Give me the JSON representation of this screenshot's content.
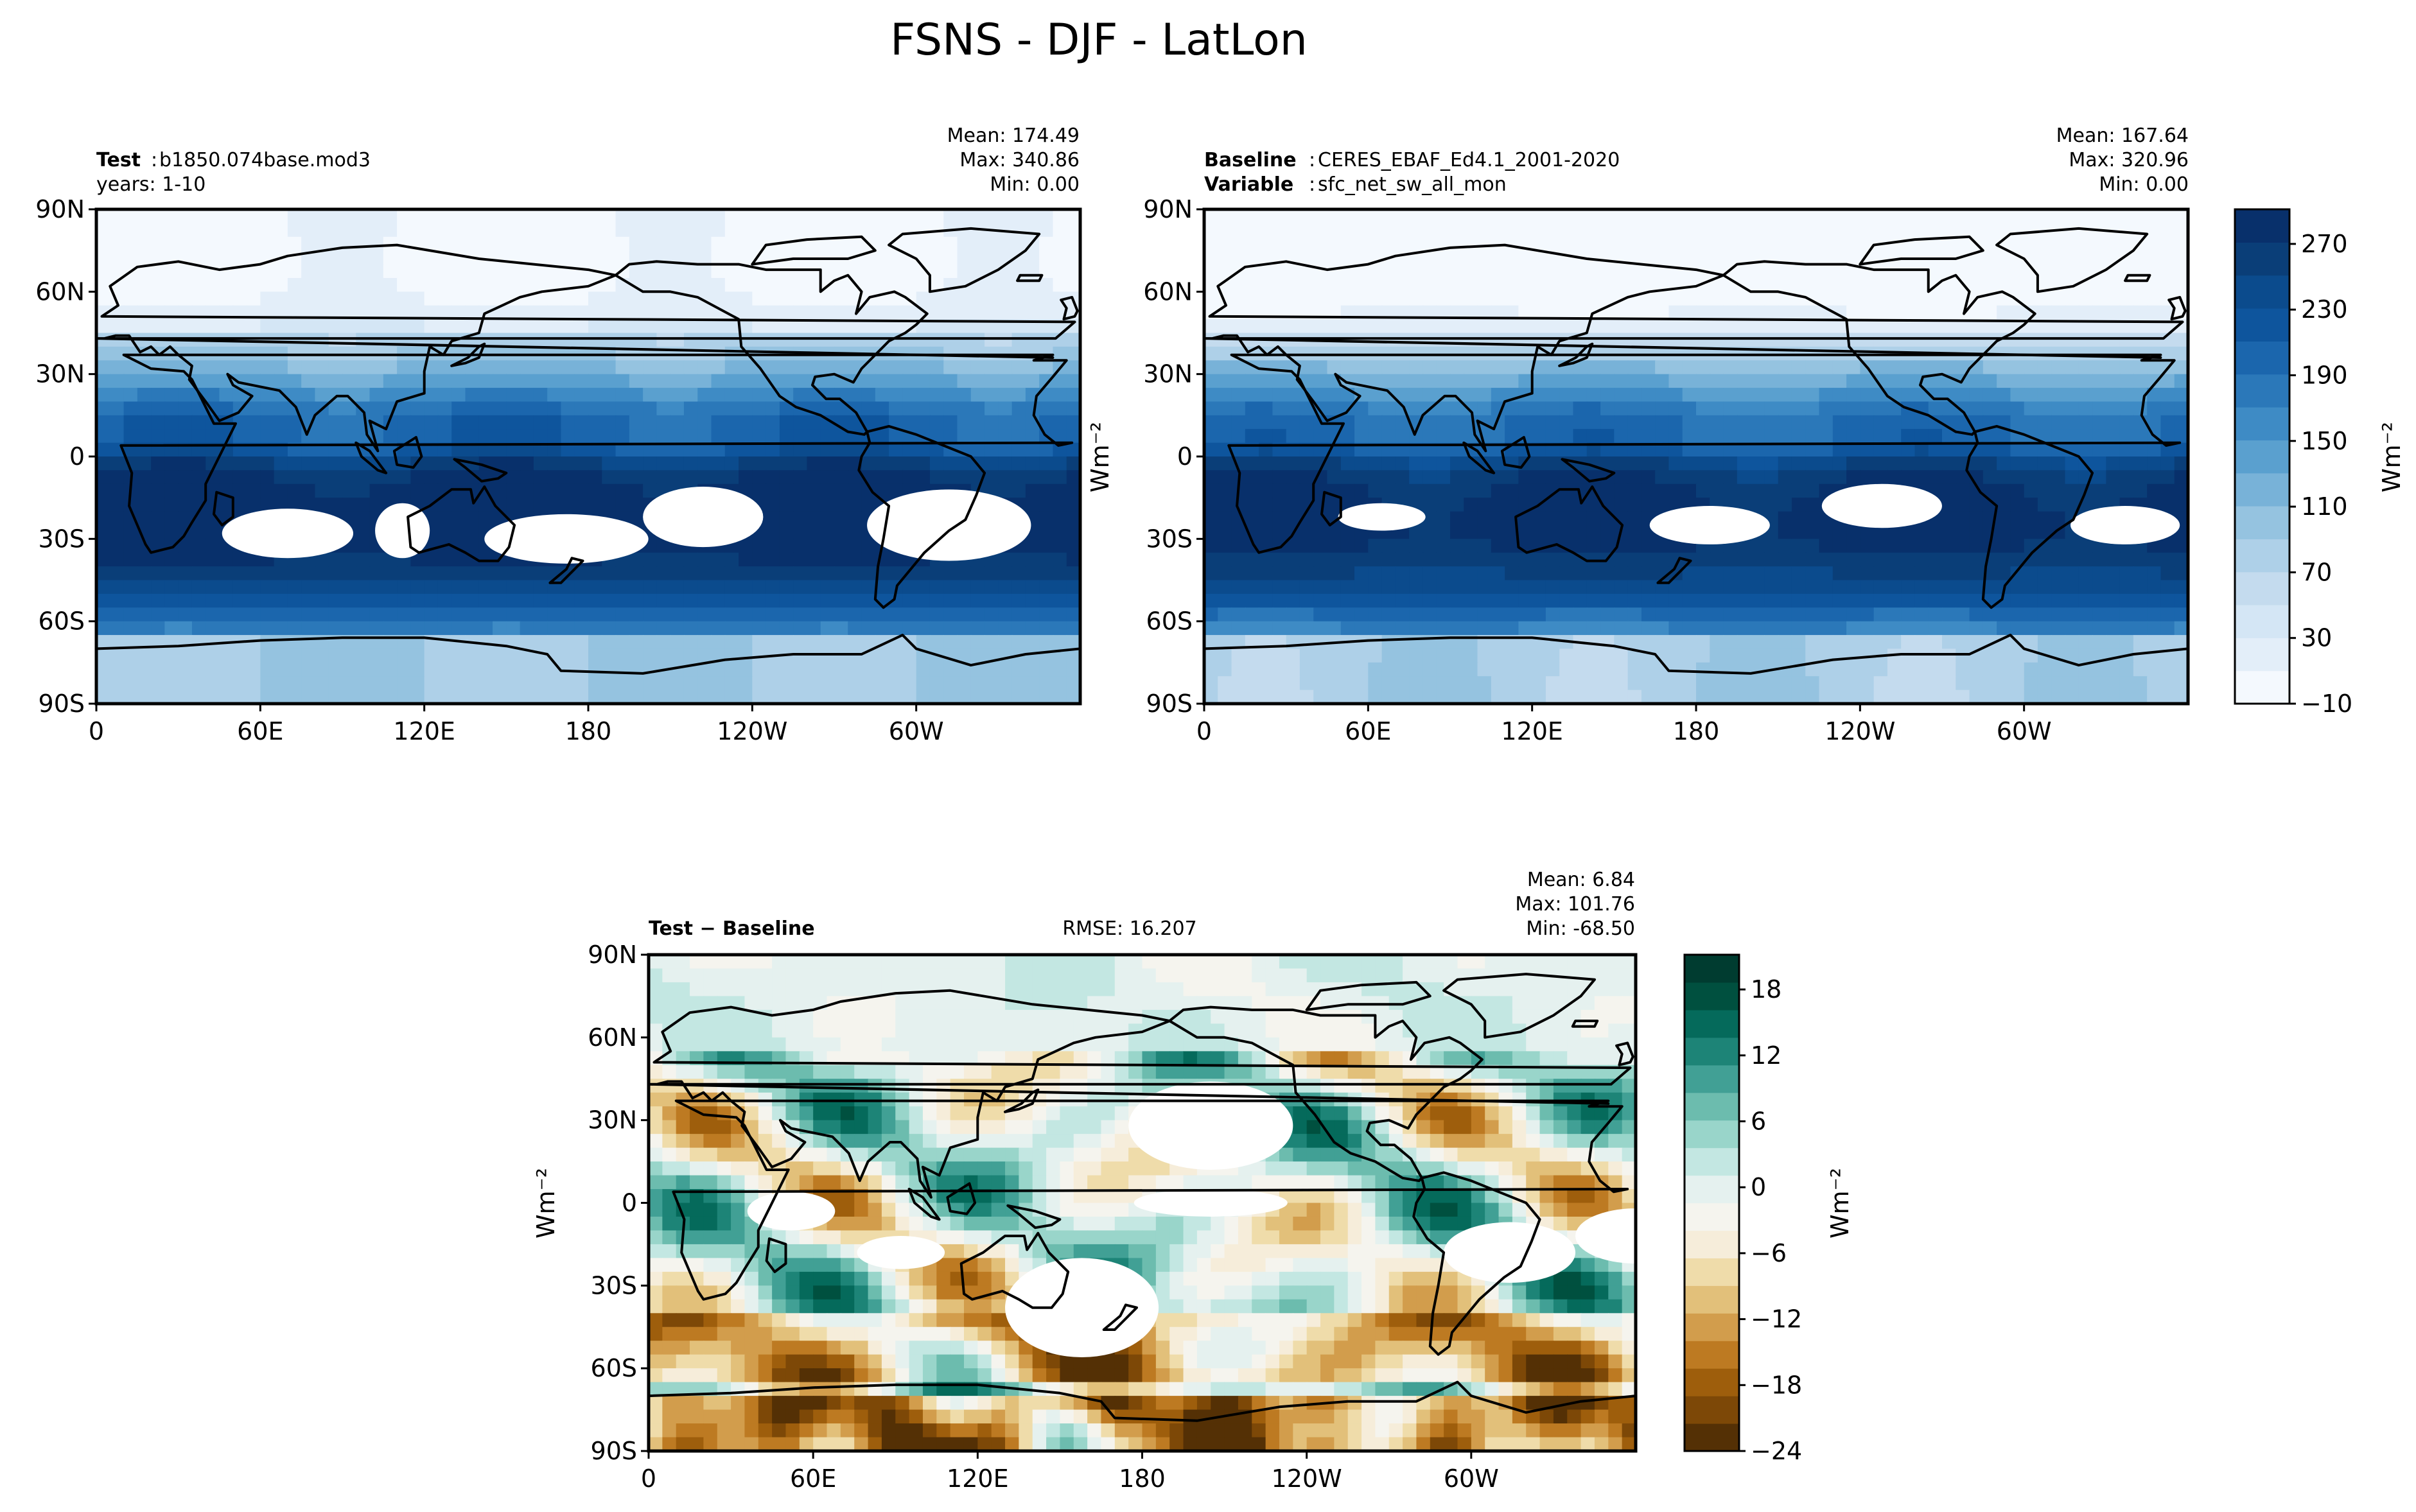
{
  "figure": {
    "title": "FSNS - DJF - LatLon"
  },
  "colors": {
    "blues": [
      "#f4f9fe",
      "#e3eef9",
      "#d4e6f5",
      "#c4dbee",
      "#aed0e8",
      "#95c3e0",
      "#78b2d8",
      "#5aa0cf",
      "#3e8bc5",
      "#2b78b9",
      "#1b66ad",
      "#0e559d",
      "#0b4b8d",
      "#0a3e78",
      "#08306b"
    ],
    "diverging": [
      "#543005",
      "#7d4807",
      "#9e5e0c",
      "#bd7a22",
      "#d29d4c",
      "#e2c07a",
      "#efdcaa",
      "#f6edda",
      "#f5f4ee",
      "#e5f1ef",
      "#c3e7e2",
      "#99d5ca",
      "#6cbcae",
      "#41a095",
      "#1d8477",
      "#056a5b",
      "#00503f",
      "#003c30"
    ],
    "land_outline": "#000000",
    "missing": "#ffffff"
  },
  "chart_data": [
    {
      "id": "test",
      "type": "heatmap",
      "projection": "latlon",
      "header_left_bold": "Test",
      "header_left_text": "b1850.074base.mod3",
      "header_left_line2": "years: 1-10",
      "stats": [
        "Mean: 174.49",
        "Max: 340.86",
        "Min:  0.00"
      ],
      "x_ticks": [
        "0",
        "60E",
        "120E",
        "180",
        "120W",
        "60W"
      ],
      "y_ticks": [
        "90N",
        "60N",
        "30N",
        "0",
        "30S",
        "60S",
        "90S"
      ],
      "ylabel": "",
      "colormap": "blues"
    },
    {
      "id": "baseline",
      "type": "heatmap",
      "projection": "latlon",
      "header_left_bold": "Baseline",
      "header_left_text": "CERES_EBAF_Ed4.1_2001-2020",
      "header_left_bold2": "Variable",
      "header_left_text2": "sfc_net_sw_all_mon",
      "stats": [
        "Mean: 167.64",
        "Max: 320.96",
        "Min:  0.00"
      ],
      "x_ticks": [
        "0",
        "60E",
        "120E",
        "180",
        "120W",
        "60W"
      ],
      "y_ticks": [
        "90N",
        "60N",
        "30N",
        "0",
        "30S",
        "60S",
        "90S"
      ],
      "ylabel": "Wm⁻²",
      "colormap": "blues",
      "colorbar": {
        "ticks": [
          "270",
          "230",
          "190",
          "150",
          "110",
          "70",
          "30",
          "−10"
        ],
        "range": [
          -10,
          290
        ],
        "label": "Wm⁻²"
      }
    },
    {
      "id": "diff",
      "type": "heatmap",
      "projection": "latlon",
      "header_left_bold": "Test − Baseline",
      "rmse": "RMSE: 16.207",
      "stats": [
        "Mean:  6.84",
        "Max: 101.76",
        "Min: -68.50"
      ],
      "x_ticks": [
        "0",
        "60E",
        "120E",
        "180",
        "120W",
        "60W"
      ],
      "y_ticks": [
        "90N",
        "60N",
        "30N",
        "0",
        "30S",
        "60S",
        "90S"
      ],
      "ylabel": "Wm⁻²",
      "colormap": "diverging",
      "colorbar": {
        "ticks": [
          "18",
          "12",
          "6",
          "0",
          "−6",
          "−12",
          "−18",
          "−24"
        ],
        "range": [
          -24,
          21
        ],
        "label": "Wm⁻²"
      }
    }
  ]
}
